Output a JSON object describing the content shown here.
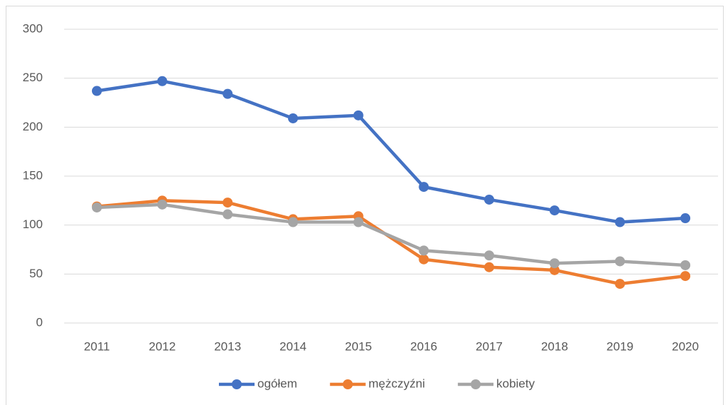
{
  "chart_data": {
    "type": "line",
    "categories": [
      "2011",
      "2012",
      "2013",
      "2014",
      "2015",
      "2016",
      "2017",
      "2018",
      "2019",
      "2020"
    ],
    "series": [
      {
        "name": "ogółem",
        "color": "#4472c4",
        "values": [
          237,
          247,
          234,
          209,
          212,
          139,
          126,
          115,
          103,
          107
        ]
      },
      {
        "name": "mężczyźni",
        "color": "#ed7d31",
        "values": [
          119,
          125,
          123,
          106,
          109,
          65,
          57,
          54,
          40,
          48
        ]
      },
      {
        "name": "kobiety",
        "color": "#a5a5a5",
        "values": [
          118,
          121,
          111,
          103,
          103,
          74,
          69,
          61,
          63,
          59
        ]
      }
    ],
    "ylim": [
      0,
      300
    ],
    "yticks": [
      0,
      50,
      100,
      150,
      200,
      250,
      300
    ],
    "grid": true,
    "legend": "bottom"
  }
}
